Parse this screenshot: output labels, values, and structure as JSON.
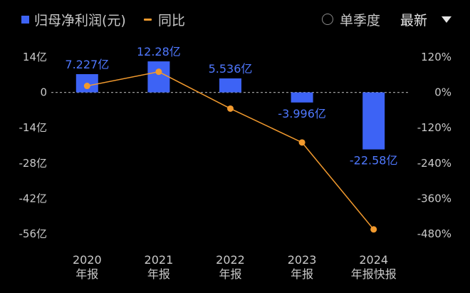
{
  "legend": {
    "bar_label": "归母净利润(元)",
    "line_label": "同比"
  },
  "controls": {
    "quarter_toggle": "单季度",
    "sort_label": "最新"
  },
  "colors": {
    "bar": "#3d63f5",
    "line": "#f29a2e",
    "label": "#4f78ff"
  },
  "chart_data": {
    "type": "bar",
    "categories": [
      [
        "2020",
        "年报"
      ],
      [
        "2021",
        "年报"
      ],
      [
        "2022",
        "年报"
      ],
      [
        "2023",
        "年报"
      ],
      [
        "2024",
        "年报快报"
      ]
    ],
    "series": [
      {
        "name": "归母净利润(元)",
        "type": "bar",
        "values": [
          7.227,
          12.28,
          5.536,
          -3.996,
          -22.58
        ],
        "labels": [
          "7.227亿",
          "12.28亿",
          "5.536亿",
          "-3.996亿",
          "-22.58亿"
        ],
        "unit": "亿"
      },
      {
        "name": "同比",
        "type": "line",
        "values": [
          22,
          70,
          -55,
          -170,
          -465
        ],
        "unit": "%"
      }
    ],
    "y_left": {
      "ticks": [
        14,
        0,
        -14,
        -28,
        -42,
        -56
      ],
      "tick_labels": [
        "14亿",
        "0",
        "-14亿",
        "-28亿",
        "-42亿",
        "-56亿"
      ],
      "range": [
        -56,
        14
      ]
    },
    "y_right": {
      "ticks": [
        120,
        0,
        -120,
        -240,
        -360,
        -480
      ],
      "tick_labels": [
        "120%",
        "0%",
        "-120%",
        "-240%",
        "-360%",
        "-480%"
      ],
      "range": [
        -480,
        120
      ]
    },
    "zero_line": "dashed"
  }
}
